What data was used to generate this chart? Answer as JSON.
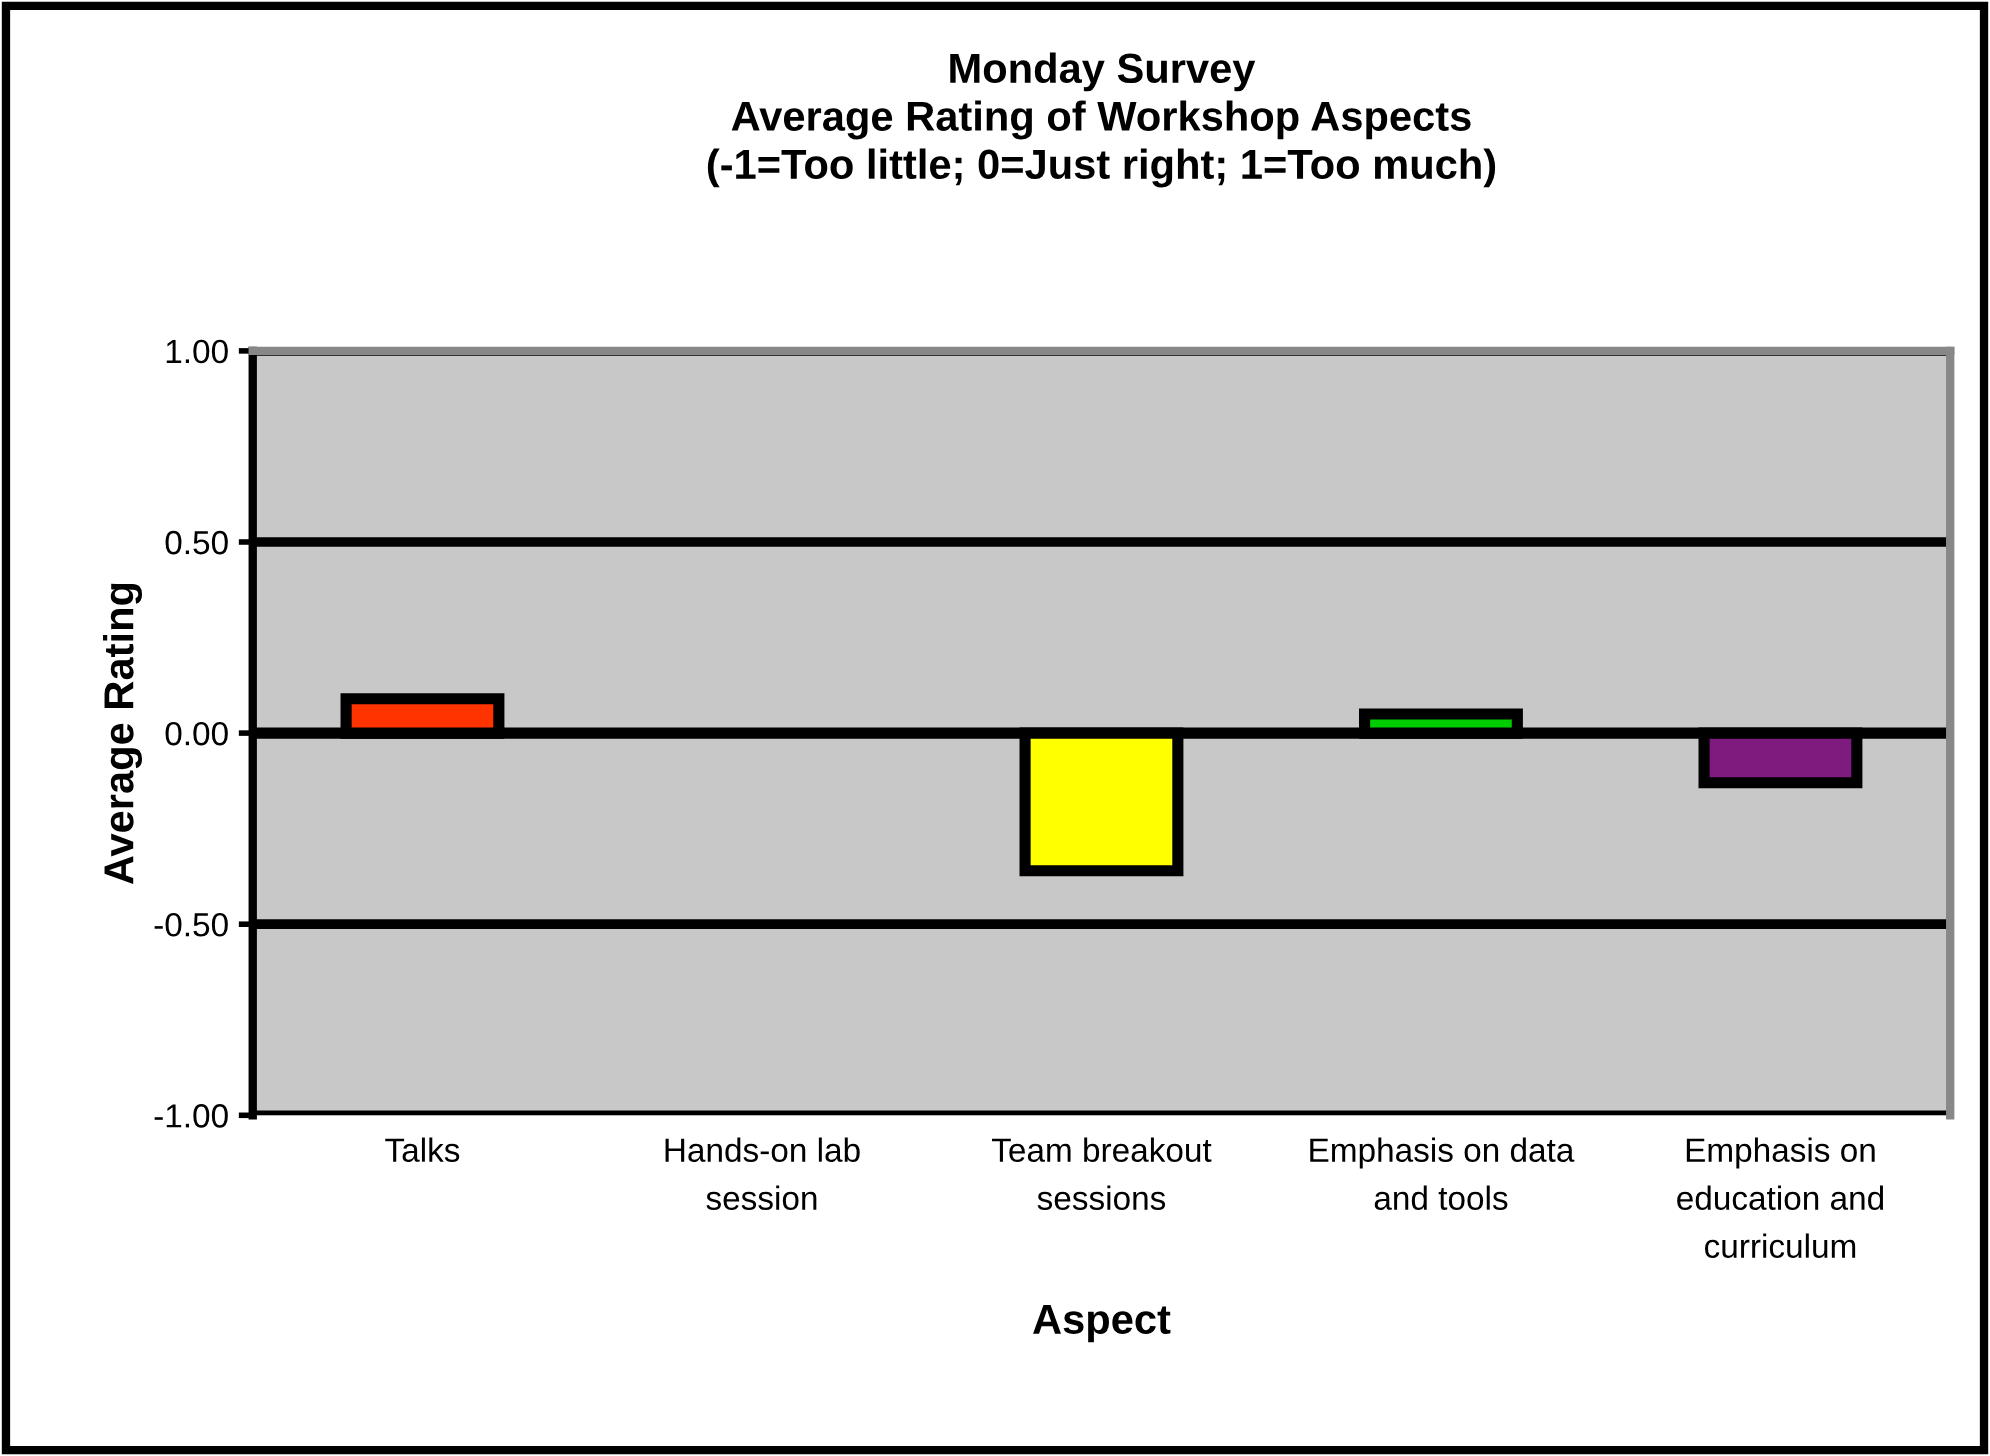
{
  "chart_data": {
    "type": "bar",
    "title": "Monday Survey\nAverage Rating of Workshop Aspects\n(-1=Too little; 0=Just right; 1=Too much)",
    "xlabel": "Aspect",
    "ylabel": "Average Rating",
    "categories": [
      "Talks",
      "Hands-on lab\nsession",
      "Team breakout\nsessions",
      "Emphasis on data\nand tools",
      "Emphasis on\neducation and\ncurriculum"
    ],
    "values": [
      0.09,
      null,
      -0.36,
      0.05,
      -0.13
    ],
    "colors": [
      "#ff3300",
      null,
      "#ffff00",
      "#00cc00",
      "#7f1a7f"
    ],
    "ylim": [
      -1,
      1
    ],
    "yticks": [
      {
        "value": -1,
        "label": "-1.00"
      },
      {
        "value": -0.5,
        "label": "-0.50"
      },
      {
        "value": 0,
        "label": "0.00"
      },
      {
        "value": 0.5,
        "label": "0.50"
      },
      {
        "value": 1,
        "label": "1.00"
      }
    ],
    "grid": "y",
    "legend": false
  }
}
